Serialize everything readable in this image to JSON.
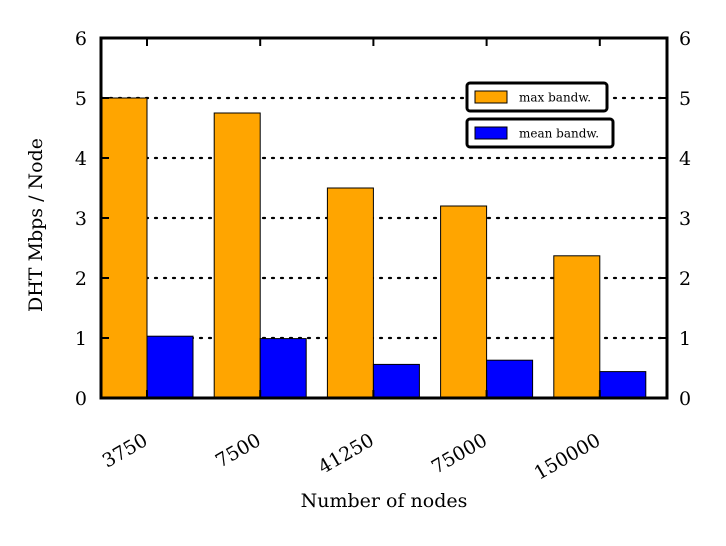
{
  "chart_data": {
    "type": "bar",
    "title": "",
    "xlabel": "Number of nodes",
    "ylabel": "DHT Mbps / Node",
    "categories": [
      "3750",
      "7500",
      "41250",
      "75000",
      "150000"
    ],
    "series": [
      {
        "name": "max bandw.",
        "color": "#FFA500",
        "values": [
          5.0,
          4.75,
          3.5,
          3.2,
          2.37
        ]
      },
      {
        "name": "mean bandw.",
        "color": "#0000FF",
        "values": [
          1.03,
          0.99,
          0.56,
          0.63,
          0.44
        ]
      }
    ],
    "ylim": [
      0,
      6
    ],
    "yticks": [
      0,
      1,
      2,
      3,
      4,
      5,
      6
    ],
    "grid": "horizontal dotted",
    "legend_position": "top-right",
    "right_axis_mirrored": true
  }
}
